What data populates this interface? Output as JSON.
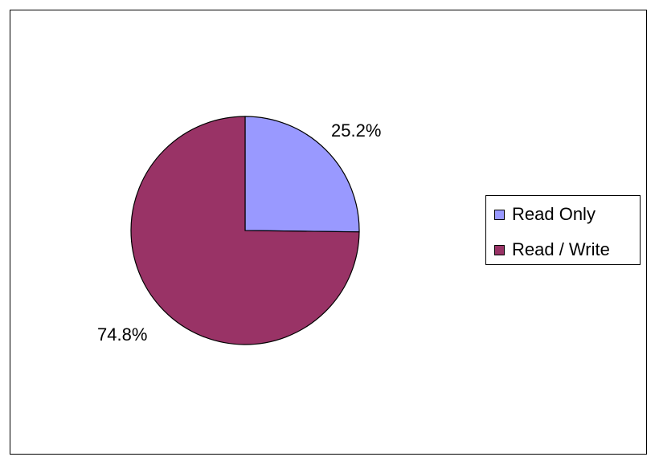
{
  "chart_data": {
    "type": "pie",
    "title": "",
    "slices": [
      {
        "name": "Read Only",
        "value": 25.2,
        "label": "25.2%",
        "color": "#9999FF"
      },
      {
        "name": "Read / Write",
        "value": 74.8,
        "label": "74.8%",
        "color": "#993366"
      }
    ],
    "start_angle": "12 o'clock, clockwise",
    "legend_position": "right"
  }
}
